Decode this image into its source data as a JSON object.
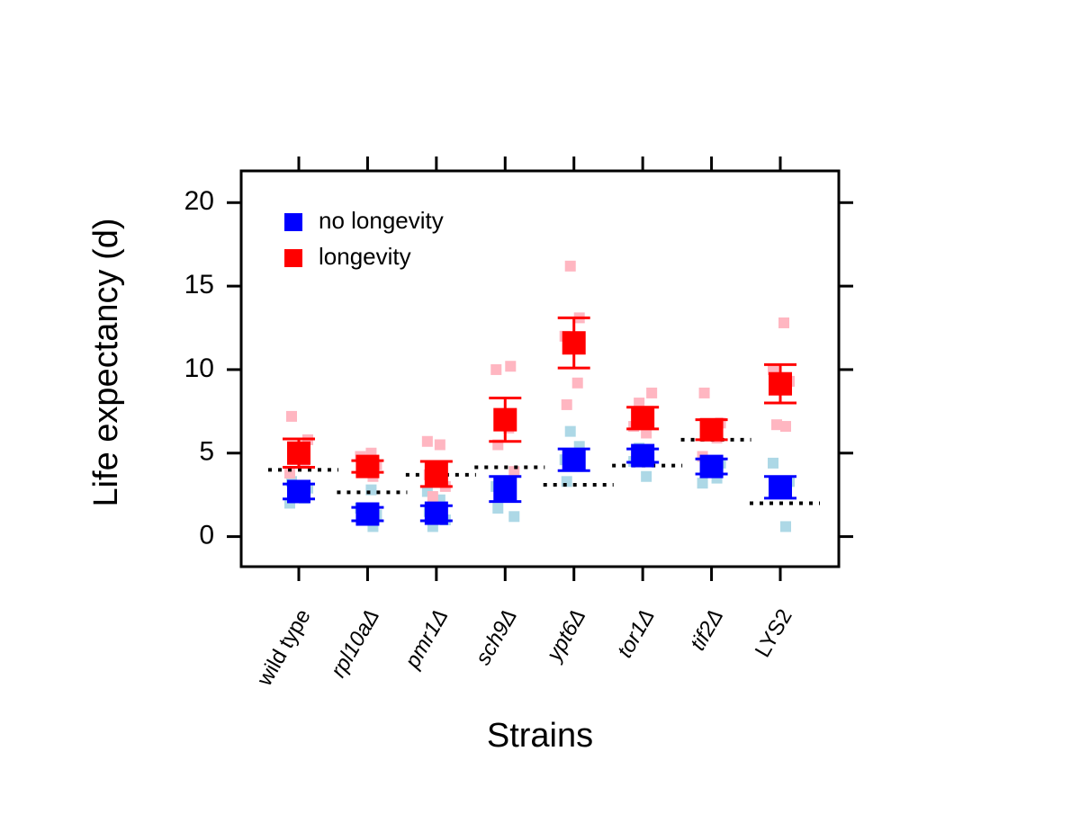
{
  "chart_data": {
    "type": "dot-errorbar",
    "x_label": "Strains",
    "y_label": "Life expectancy (d)",
    "categories": [
      "wild type",
      "rpl10aΔ",
      "pmr1Δ",
      "sch9Δ",
      "ypt6Δ",
      "tor1Δ",
      "tif2Δ",
      "LYS2"
    ],
    "ylim": [
      -1.8,
      21.9
    ],
    "yticks": [
      0,
      5,
      10,
      15,
      20
    ],
    "legend_loc": "upper left",
    "series": [
      {
        "name": "no longevity",
        "color": "#0000ff",
        "point_color": "#add8e6",
        "values": [
          2.7,
          1.35,
          1.4,
          2.85,
          4.6,
          4.85,
          4.2,
          2.95
        ],
        "errors": [
          0.45,
          0.4,
          0.45,
          0.75,
          0.65,
          0.4,
          0.45,
          0.65
        ],
        "points": [
          [
            2.0,
            2.3,
            2.5,
            2.9,
            3.3
          ],
          [
            0.6,
            1.0,
            1.3,
            1.7,
            2.8
          ],
          [
            0.6,
            1.0,
            1.5,
            2.2,
            2.7
          ],
          [
            1.2,
            1.7,
            2.5,
            3.0,
            3.3
          ],
          [
            3.3,
            4.2,
            4.6,
            5.4,
            6.3
          ],
          [
            3.6,
            4.5,
            5.0,
            5.3
          ],
          [
            3.2,
            3.5,
            4.0,
            4.4
          ],
          [
            0.6,
            2.6,
            3.3,
            4.4
          ]
        ]
      },
      {
        "name": "longevity",
        "color": "#ff0000",
        "point_color": "#ffb6c1",
        "values": [
          5.0,
          4.2,
          3.75,
          7.0,
          11.6,
          7.1,
          6.4,
          9.15
        ],
        "errors": [
          0.85,
          0.35,
          0.75,
          1.3,
          1.5,
          0.65,
          0.6,
          1.15
        ],
        "points": [
          [
            3.8,
            4.4,
            5.0,
            5.8,
            7.2
          ],
          [
            3.6,
            3.9,
            4.3,
            4.8,
            5.0
          ],
          [
            2.4,
            3.0,
            3.7,
            5.5,
            5.7
          ],
          [
            3.9,
            5.5,
            6.5,
            10.0,
            10.2
          ],
          [
            7.9,
            9.2,
            12.0,
            13.1,
            16.2
          ],
          [
            6.2,
            6.6,
            7.5,
            8.0,
            8.6
          ],
          [
            4.8,
            5.9,
            6.3,
            6.8,
            8.6
          ],
          [
            6.6,
            6.7,
            9.3,
            10.0,
            12.8
          ]
        ]
      }
    ],
    "reference": {
      "color": "#000000",
      "style": "dotted",
      "values": [
        4.0,
        2.65,
        3.7,
        4.15,
        3.1,
        4.25,
        5.8,
        2.0
      ]
    }
  }
}
